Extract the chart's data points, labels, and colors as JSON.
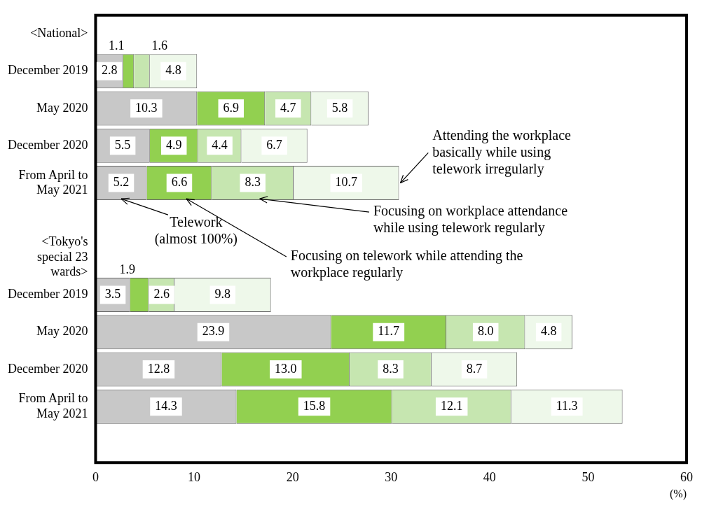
{
  "chart_data": {
    "type": "bar",
    "orientation": "horizontal",
    "stacked": true,
    "legend": false,
    "grid": false,
    "xlabel": "(%)",
    "categories": [
      "<National>",
      "December 2019",
      "May 2020",
      "December 2020",
      "From April to May 2021",
      null,
      "<Tokyo's special 23 wards>",
      "December 2019",
      "May 2020",
      "December 2020",
      "From April to May 2021",
      null
    ],
    "series": [
      {
        "name": "Telework (almost 100%)",
        "color": "#c8c8c8",
        "values": [
          null,
          2.8,
          10.3,
          5.5,
          5.2,
          null,
          null,
          3.5,
          23.9,
          12.8,
          14.3,
          null
        ],
        "value_labels": [
          null,
          "2.8",
          "10.3",
          "5.5",
          "5.2",
          null,
          null,
          "3.5",
          "23.9",
          "12.8",
          "14.3",
          null
        ]
      },
      {
        "name": "Focusing on telework while attending the workplace regularly",
        "color": "#92d050",
        "values": [
          null,
          1.1,
          6.9,
          4.9,
          6.6,
          null,
          null,
          1.9,
          11.7,
          13.0,
          15.8,
          null
        ],
        "value_labels": [
          null,
          "1.1",
          "6.9",
          "4.9",
          "6.6",
          null,
          null,
          "1.9",
          "11.7",
          "13.0",
          "15.8",
          null
        ]
      },
      {
        "name": "Focusing on workplace attendance while using telework regularly",
        "color": "#c6e6b0",
        "values": [
          null,
          1.6,
          4.7,
          4.4,
          8.3,
          null,
          null,
          2.6,
          8.0,
          8.3,
          12.1,
          null
        ],
        "value_labels": [
          null,
          "1.6",
          "4.7",
          "4.4",
          "8.3",
          null,
          null,
          "2.6",
          "8.0",
          "8.3",
          "12.1",
          null
        ]
      },
      {
        "name": "Attending the workplace basically while using telework irregularly",
        "color": "#eef8ea",
        "values": [
          null,
          4.8,
          5.8,
          6.7,
          10.7,
          null,
          null,
          9.8,
          4.8,
          8.7,
          11.3,
          null
        ],
        "value_labels": [
          null,
          "4.8",
          "5.8",
          "6.7",
          "10.7",
          null,
          null,
          "9.8",
          "4.8",
          "8.7",
          "11.3",
          null
        ]
      }
    ],
    "xlim": [
      0,
      60
    ],
    "xticks": [
      0,
      10,
      20,
      30,
      40,
      50,
      60
    ]
  }
}
